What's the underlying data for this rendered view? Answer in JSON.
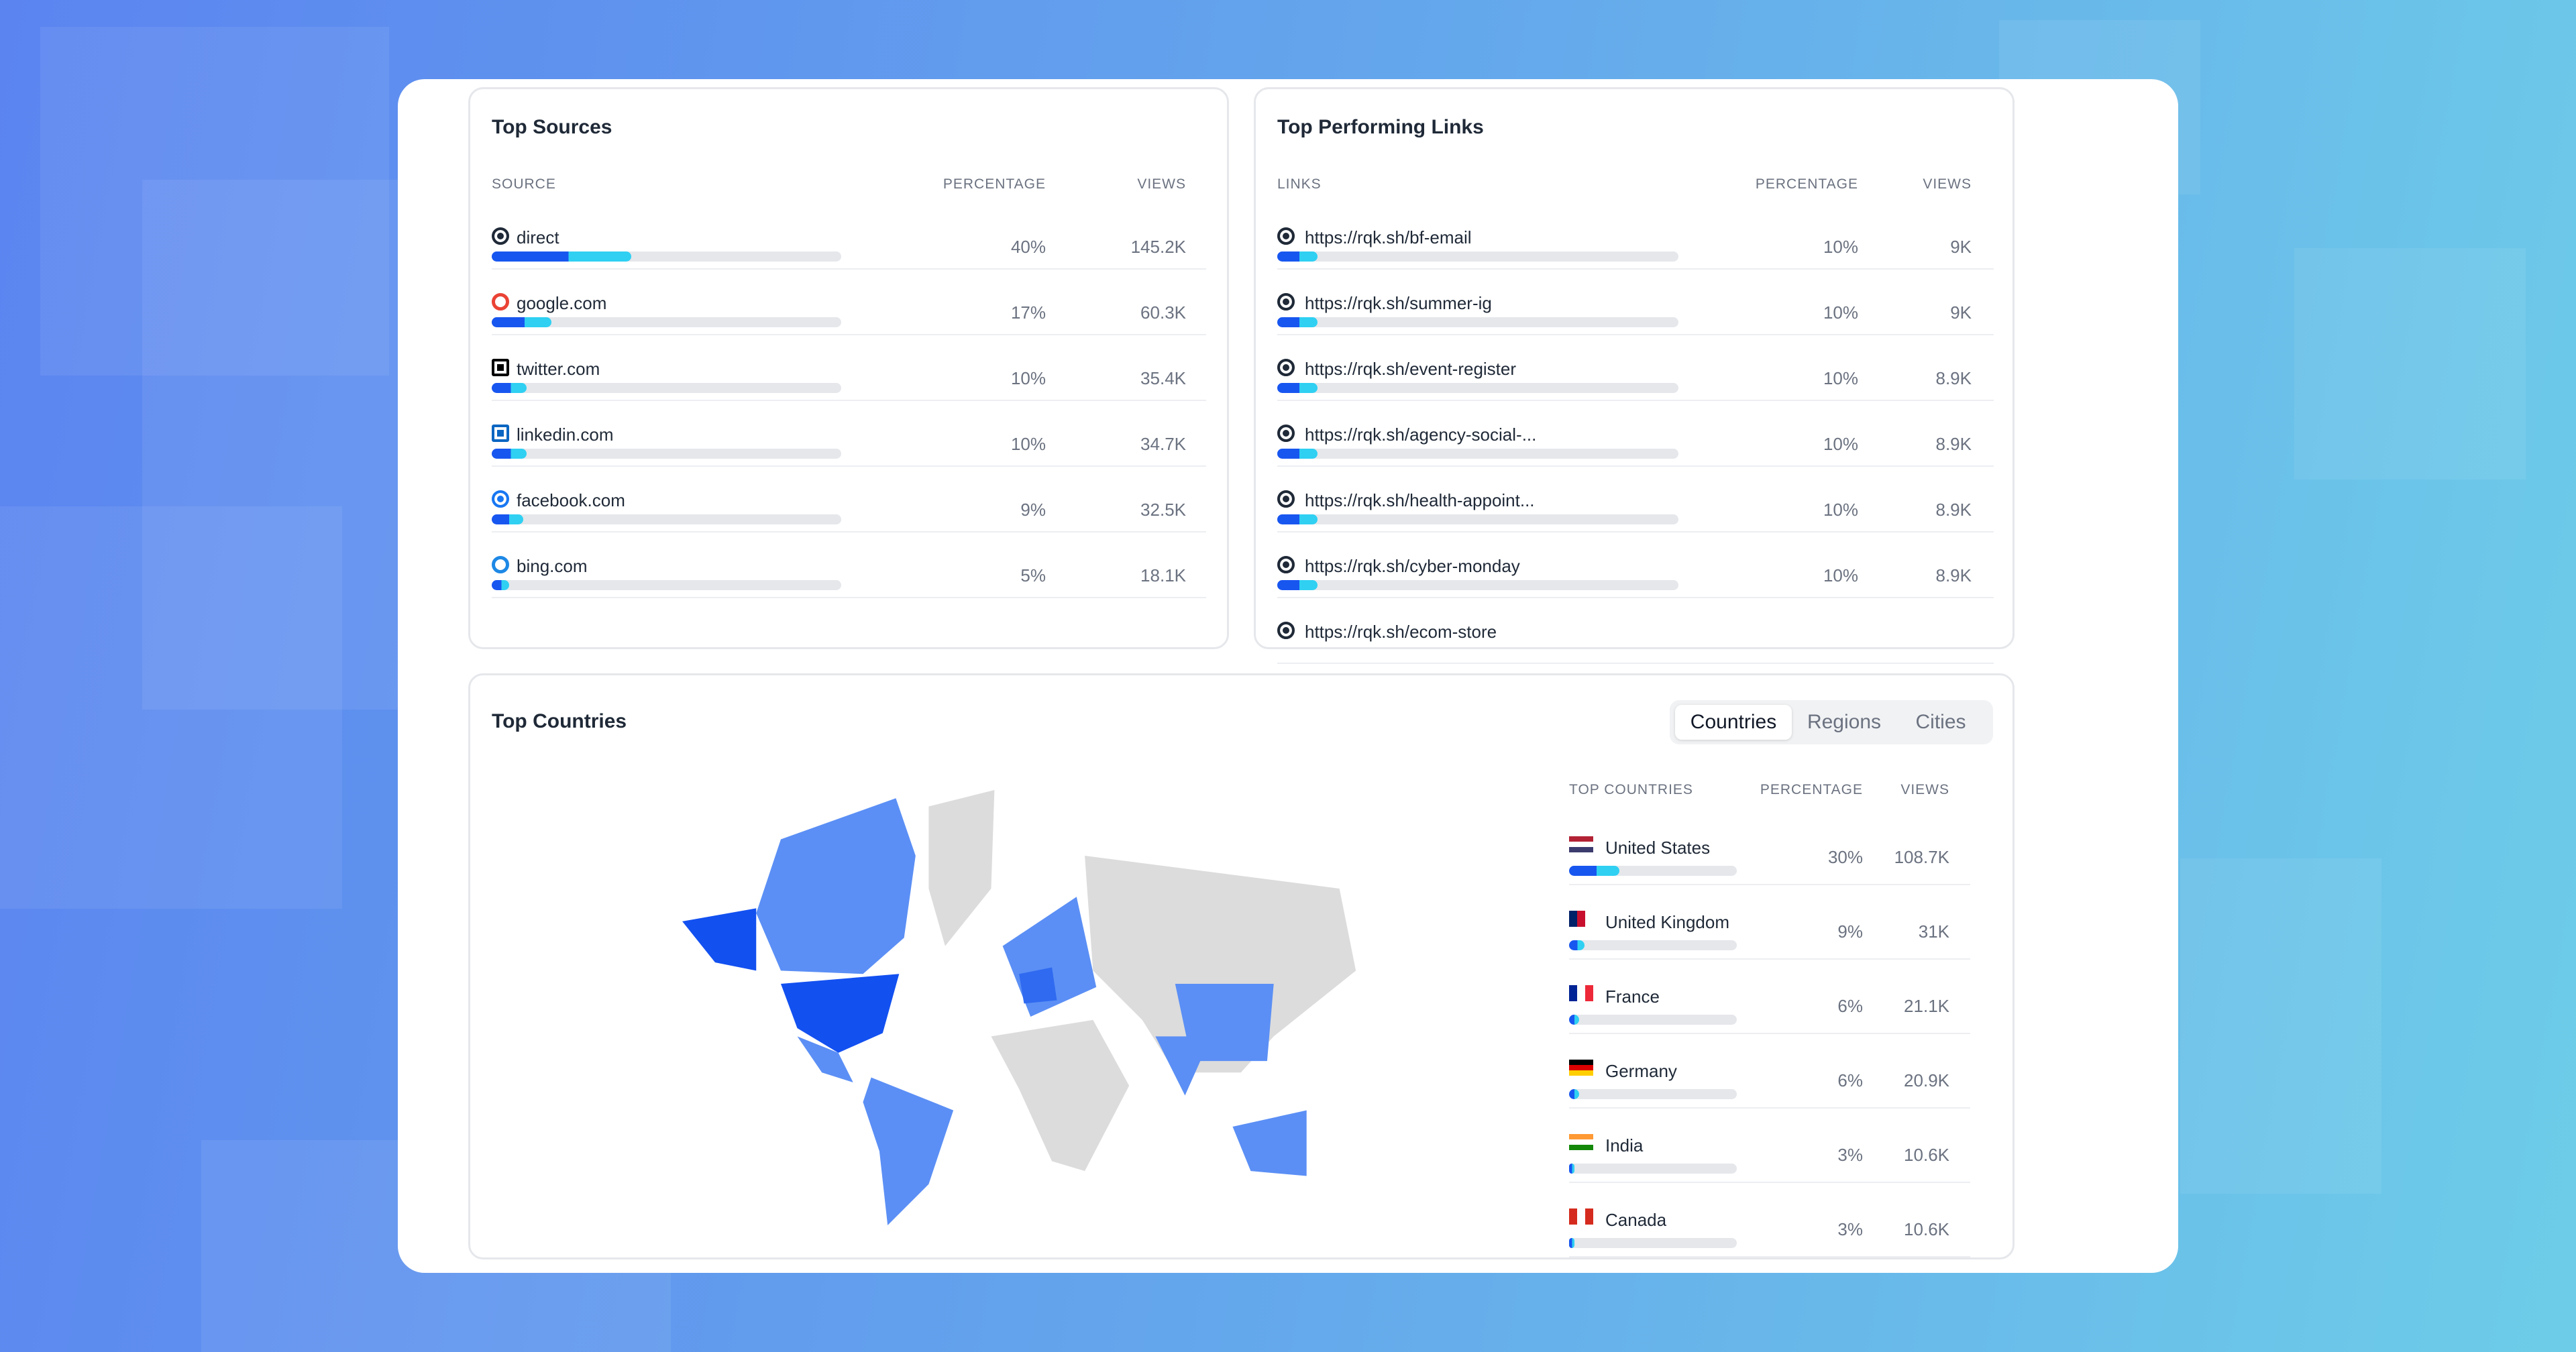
{
  "top_sources": {
    "title": "Top Sources",
    "columns": [
      "SOURCE",
      "PERCENTAGE",
      "VIEWS"
    ],
    "rows": [
      {
        "name": "direct",
        "percentage": 40,
        "percentage_label": "40%",
        "views": "145.2K"
      },
      {
        "name": "google.com",
        "percentage": 17,
        "percentage_label": "17%",
        "views": "60.3K"
      },
      {
        "name": "twitter.com",
        "percentage": 10,
        "percentage_label": "10%",
        "views": "35.4K"
      },
      {
        "name": "linkedin.com",
        "percentage": 10,
        "percentage_label": "10%",
        "views": "34.7K"
      },
      {
        "name": "facebook.com",
        "percentage": 9,
        "percentage_label": "9%",
        "views": "32.5K"
      },
      {
        "name": "bing.com",
        "percentage": 5,
        "percentage_label": "5%",
        "views": "18.1K"
      }
    ]
  },
  "top_links": {
    "title": "Top Performing Links",
    "columns": [
      "LINKS",
      "PERCENTAGE",
      "VIEWS"
    ],
    "rows": [
      {
        "name": "https://rqk.sh/bf-email",
        "percentage": 10,
        "percentage_label": "10%",
        "views": "9K"
      },
      {
        "name": "https://rqk.sh/summer-ig",
        "percentage": 10,
        "percentage_label": "10%",
        "views": "9K"
      },
      {
        "name": "https://rqk.sh/event-register",
        "percentage": 10,
        "percentage_label": "10%",
        "views": "8.9K"
      },
      {
        "name": "https://rqk.sh/agency-social-...",
        "percentage": 10,
        "percentage_label": "10%",
        "views": "8.9K"
      },
      {
        "name": "https://rqk.sh/health-appoint...",
        "percentage": 10,
        "percentage_label": "10%",
        "views": "8.9K"
      },
      {
        "name": "https://rqk.sh/cyber-monday",
        "percentage": 10,
        "percentage_label": "10%",
        "views": "8.9K"
      },
      {
        "name": "https://rqk.sh/ecom-store"
      }
    ]
  },
  "top_countries": {
    "title": "Top Countries",
    "tabs": [
      "Countries",
      "Regions",
      "Cities"
    ],
    "active_tab": 0,
    "columns": [
      "TOP COUNTRIES",
      "PERCENTAGE",
      "VIEWS"
    ],
    "rows": [
      {
        "name": "United States",
        "percentage": 30,
        "percentage_label": "30%",
        "views": "108.7K"
      },
      {
        "name": "United Kingdom",
        "percentage": 9,
        "percentage_label": "9%",
        "views": "31K"
      },
      {
        "name": "France",
        "percentage": 6,
        "percentage_label": "6%",
        "views": "21.1K"
      },
      {
        "name": "Germany",
        "percentage": 6,
        "percentage_label": "6%",
        "views": "20.9K"
      },
      {
        "name": "India",
        "percentage": 3,
        "percentage_label": "3%",
        "views": "10.6K"
      },
      {
        "name": "Canada",
        "percentage": 3,
        "percentage_label": "3%",
        "views": "10.6K"
      }
    ]
  }
}
